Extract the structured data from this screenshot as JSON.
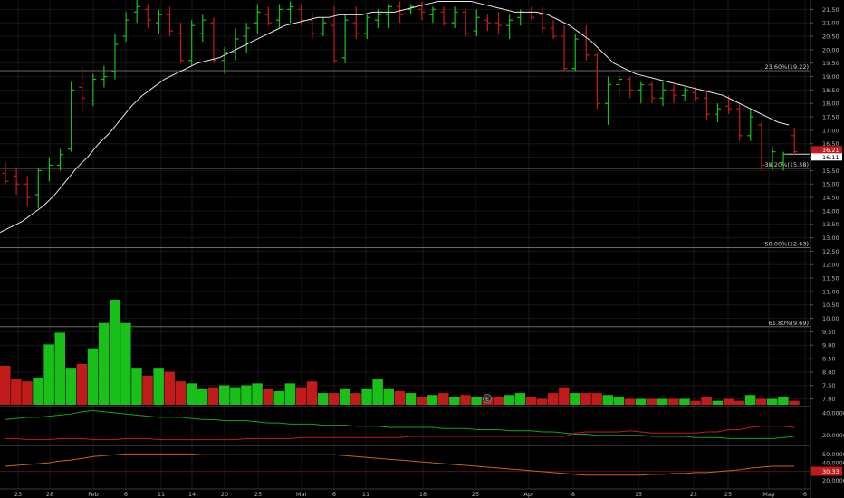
{
  "colors": {
    "background": "#000000",
    "up": "#19c019",
    "down": "#c21b1b",
    "grid": "#171717",
    "axis_text": "#b4b4b4",
    "ma_line": "#e8e8e8",
    "fib_line": "#6a6a6a",
    "price_badge_red": "#c21b1b",
    "price_badge_white": "#ffffff"
  },
  "chart_data": [
    {
      "type": "candlestick",
      "title": "",
      "xlabel": "",
      "ylabel": "",
      "ylim": [
        6.75,
        21.85
      ],
      "y_ticks": [
        7.0,
        7.5,
        8.0,
        8.5,
        9.0,
        9.5,
        10.0,
        10.5,
        11.0,
        11.5,
        12.0,
        12.5,
        13.0,
        13.5,
        14.0,
        14.5,
        15.0,
        15.5,
        16.0,
        16.5,
        17.0,
        17.5,
        18.0,
        18.5,
        19.0,
        19.5,
        20.0,
        20.5,
        21.0,
        21.5
      ],
      "y_tick_labels": [
        "7.00",
        "7.50",
        "8.00",
        "8.50",
        "9.00",
        "9.50",
        "10.00",
        "10.50",
        "11.00",
        "11.50",
        "12.00",
        "12.50",
        "13.00",
        "13.50",
        "14.00",
        "14.50",
        "15.00",
        "15.50",
        "16.00",
        "16.50",
        "17.00",
        "17.50",
        "18.00",
        "18.50",
        "19.00",
        "19.50",
        "20.00",
        "20.50",
        "21.00",
        "21.50"
      ],
      "x_labels": [
        "23",
        "28",
        "Feb",
        "6",
        "11",
        "14",
        "20",
        "25",
        "Mar",
        "6",
        "11",
        "18",
        "25",
        "Apr",
        "8",
        "15",
        "22",
        "25",
        "May",
        "6"
      ],
      "grid": true,
      "candles": [
        {
          "open": 15.4,
          "high": 15.8,
          "low": 15.0,
          "close": 15.1
        },
        {
          "open": 15.3,
          "high": 15.6,
          "low": 14.6,
          "close": 15.0
        },
        {
          "open": 15.0,
          "high": 15.3,
          "low": 14.2,
          "close": 14.5
        },
        {
          "open": 14.6,
          "high": 15.6,
          "low": 14.1,
          "close": 15.5
        },
        {
          "open": 15.6,
          "high": 16.0,
          "low": 15.1,
          "close": 15.7
        },
        {
          "open": 15.7,
          "high": 16.3,
          "low": 15.5,
          "close": 16.1
        },
        {
          "open": 16.3,
          "high": 18.8,
          "low": 16.2,
          "close": 18.5
        },
        {
          "open": 18.6,
          "high": 19.4,
          "low": 17.7,
          "close": 18.2
        },
        {
          "open": 18.1,
          "high": 19.1,
          "low": 17.9,
          "close": 18.9
        },
        {
          "open": 18.9,
          "high": 19.4,
          "low": 18.6,
          "close": 19.0
        },
        {
          "open": 19.2,
          "high": 20.6,
          "low": 18.9,
          "close": 20.2
        },
        {
          "open": 20.5,
          "high": 21.4,
          "low": 20.3,
          "close": 21.1
        },
        {
          "open": 21.4,
          "high": 21.9,
          "low": 21.0,
          "close": 21.6
        },
        {
          "open": 21.5,
          "high": 21.7,
          "low": 20.8,
          "close": 21.1
        },
        {
          "open": 21.0,
          "high": 21.5,
          "low": 20.6,
          "close": 21.3
        },
        {
          "open": 21.3,
          "high": 21.6,
          "low": 20.5,
          "close": 20.7
        },
        {
          "open": 20.6,
          "high": 21.0,
          "low": 19.5,
          "close": 19.6
        },
        {
          "open": 19.6,
          "high": 21.1,
          "low": 19.4,
          "close": 20.9
        },
        {
          "open": 20.6,
          "high": 21.3,
          "low": 20.3,
          "close": 21.1
        },
        {
          "open": 21.0,
          "high": 21.2,
          "low": 19.5,
          "close": 19.6
        },
        {
          "open": 19.6,
          "high": 20.1,
          "low": 19.1,
          "close": 19.9
        },
        {
          "open": 19.9,
          "high": 20.8,
          "low": 19.6,
          "close": 20.4
        },
        {
          "open": 20.5,
          "high": 21.0,
          "low": 19.9,
          "close": 20.8
        },
        {
          "open": 21.0,
          "high": 21.7,
          "low": 20.6,
          "close": 21.4
        },
        {
          "open": 21.3,
          "high": 21.6,
          "low": 20.9,
          "close": 21.0
        },
        {
          "open": 21.1,
          "high": 21.7,
          "low": 20.8,
          "close": 21.5
        },
        {
          "open": 21.5,
          "high": 21.8,
          "low": 21.0,
          "close": 21.6
        },
        {
          "open": 21.5,
          "high": 21.7,
          "low": 20.9,
          "close": 21.1
        },
        {
          "open": 21.1,
          "high": 21.4,
          "low": 20.4,
          "close": 20.6
        },
        {
          "open": 20.6,
          "high": 21.2,
          "low": 20.5,
          "close": 21.0
        },
        {
          "open": 20.9,
          "high": 21.6,
          "low": 19.5,
          "close": 19.6
        },
        {
          "open": 19.7,
          "high": 21.3,
          "low": 19.5,
          "close": 21.1
        },
        {
          "open": 21.0,
          "high": 21.6,
          "low": 20.4,
          "close": 20.6
        },
        {
          "open": 20.6,
          "high": 21.3,
          "low": 20.4,
          "close": 21.2
        },
        {
          "open": 21.1,
          "high": 21.5,
          "low": 20.8,
          "close": 21.3
        },
        {
          "open": 21.3,
          "high": 21.7,
          "low": 20.8,
          "close": 21.6
        },
        {
          "open": 21.6,
          "high": 21.8,
          "low": 21.0,
          "close": 21.3
        },
        {
          "open": 21.5,
          "high": 21.7,
          "low": 21.3,
          "close": 21.6
        },
        {
          "open": 21.5,
          "high": 21.8,
          "low": 21.1,
          "close": 21.4
        },
        {
          "open": 21.3,
          "high": 21.6,
          "low": 21.0,
          "close": 21.5
        },
        {
          "open": 21.4,
          "high": 21.6,
          "low": 20.9,
          "close": 21.0
        },
        {
          "open": 21.0,
          "high": 21.6,
          "low": 20.8,
          "close": 21.4
        },
        {
          "open": 21.4,
          "high": 21.5,
          "low": 20.5,
          "close": 20.6
        },
        {
          "open": 20.7,
          "high": 21.5,
          "low": 20.5,
          "close": 21.2
        },
        {
          "open": 21.1,
          "high": 21.3,
          "low": 20.7,
          "close": 21.0
        },
        {
          "open": 21.0,
          "high": 21.4,
          "low": 20.6,
          "close": 20.9
        },
        {
          "open": 20.9,
          "high": 21.3,
          "low": 20.4,
          "close": 21.1
        },
        {
          "open": 21.2,
          "high": 21.5,
          "low": 20.9,
          "close": 21.4
        },
        {
          "open": 21.4,
          "high": 21.6,
          "low": 21.1,
          "close": 21.2
        },
        {
          "open": 21.3,
          "high": 21.6,
          "low": 20.6,
          "close": 20.8
        },
        {
          "open": 20.8,
          "high": 21.1,
          "low": 20.4,
          "close": 20.5
        },
        {
          "open": 20.5,
          "high": 20.9,
          "low": 19.2,
          "close": 19.3
        },
        {
          "open": 19.3,
          "high": 20.6,
          "low": 19.2,
          "close": 20.4
        },
        {
          "open": 20.6,
          "high": 20.9,
          "low": 19.6,
          "close": 19.8
        },
        {
          "open": 19.8,
          "high": 19.9,
          "low": 17.8,
          "close": 18.0
        },
        {
          "open": 18.0,
          "high": 19.0,
          "low": 17.2,
          "close": 18.7
        },
        {
          "open": 18.7,
          "high": 19.1,
          "low": 18.2,
          "close": 18.9
        },
        {
          "open": 18.9,
          "high": 19.0,
          "low": 18.2,
          "close": 18.5
        },
        {
          "open": 18.5,
          "high": 18.8,
          "low": 18.0,
          "close": 18.7
        },
        {
          "open": 18.7,
          "high": 18.8,
          "low": 18.0,
          "close": 18.2
        },
        {
          "open": 18.2,
          "high": 18.8,
          "low": 17.9,
          "close": 18.5
        },
        {
          "open": 18.5,
          "high": 18.7,
          "low": 18.0,
          "close": 18.3
        },
        {
          "open": 18.3,
          "high": 18.6,
          "low": 18.1,
          "close": 18.5
        },
        {
          "open": 18.4,
          "high": 18.6,
          "low": 18.1,
          "close": 18.2
        },
        {
          "open": 18.2,
          "high": 18.5,
          "low": 17.4,
          "close": 17.6
        },
        {
          "open": 17.6,
          "high": 18.0,
          "low": 17.3,
          "close": 17.8
        },
        {
          "open": 17.9,
          "high": 18.3,
          "low": 17.6,
          "close": 17.8
        },
        {
          "open": 17.8,
          "high": 18.0,
          "low": 16.6,
          "close": 16.8
        },
        {
          "open": 16.8,
          "high": 17.8,
          "low": 16.6,
          "close": 17.5
        },
        {
          "open": 17.2,
          "high": 17.3,
          "low": 15.5,
          "close": 15.7
        },
        {
          "open": 15.7,
          "high": 16.4,
          "low": 15.5,
          "close": 16.2
        },
        {
          "open": 15.8,
          "high": 16.2,
          "low": 15.5,
          "close": 16.1
        },
        {
          "open": 16.8,
          "high": 17.1,
          "low": 16.1,
          "close": 16.2
        }
      ],
      "moving_average": [
        13.2,
        13.4,
        13.6,
        13.9,
        14.2,
        14.6,
        15.1,
        15.6,
        16.0,
        16.5,
        16.9,
        17.4,
        17.9,
        18.3,
        18.6,
        18.9,
        19.1,
        19.3,
        19.5,
        19.6,
        19.7,
        19.9,
        20.1,
        20.3,
        20.5,
        20.7,
        20.9,
        21.0,
        21.1,
        21.2,
        21.2,
        21.3,
        21.3,
        21.3,
        21.4,
        21.4,
        21.4,
        21.5,
        21.6,
        21.7,
        21.8,
        21.8,
        21.8,
        21.8,
        21.7,
        21.6,
        21.5,
        21.4,
        21.4,
        21.4,
        21.3,
        21.1,
        20.9,
        20.6,
        20.3,
        19.9,
        19.5,
        19.3,
        19.1,
        19.0,
        18.9,
        18.8,
        18.7,
        18.6,
        18.5,
        18.4,
        18.3,
        18.1,
        17.9,
        17.7,
        17.5,
        17.3,
        17.2
      ],
      "fib_levels": [
        {
          "label": "23.60%(19.22)",
          "value": 19.22
        },
        {
          "label": "38.20%(15.58)",
          "value": 15.58
        },
        {
          "label": "50.00%(12.63)",
          "value": 12.63
        },
        {
          "label": "61.80%(9.69)",
          "value": 9.69
        }
      ],
      "current_price_line": 16.11,
      "price_badges": [
        "16.21",
        "16.11"
      ],
      "volume": [
        2.0,
        1.3,
        1.2,
        1.4,
        3.1,
        3.7,
        1.9,
        2.1,
        2.9,
        4.2,
        5.4,
        4.2,
        1.9,
        1.5,
        1.9,
        1.7,
        1.2,
        1.1,
        0.8,
        0.9,
        1.0,
        0.9,
        1.0,
        1.1,
        0.8,
        0.7,
        1.1,
        0.9,
        1.2,
        0.6,
        0.6,
        0.8,
        0.6,
        0.8,
        1.3,
        0.8,
        0.7,
        0.6,
        0.4,
        0.5,
        0.6,
        0.4,
        0.5,
        0.4,
        0.4,
        0.4,
        0.5,
        0.6,
        0.4,
        0.3,
        0.6,
        0.9,
        0.6,
        0.6,
        0.6,
        0.5,
        0.4,
        0.3,
        0.3,
        0.3,
        0.3,
        0.3,
        0.3,
        0.2,
        0.4,
        0.2,
        0.3,
        0.2,
        0.5,
        0.3,
        0.3,
        0.4,
        0.2
      ],
      "event_marker": "E"
    },
    {
      "type": "line",
      "title": "",
      "ylim": [
        12.5,
        44.0
      ],
      "y_tick_labels": [
        "40.0000",
        "20.0000"
      ],
      "series": [
        {
          "color": "#19a019",
          "values": [
            34,
            35,
            36,
            36,
            37,
            38,
            39,
            41,
            42,
            41,
            40,
            39,
            38,
            37,
            36,
            36,
            36,
            35,
            34,
            34,
            33,
            33,
            33,
            32,
            31,
            31,
            30,
            30,
            30,
            29,
            29,
            29,
            28,
            28,
            28,
            27,
            27,
            27,
            27,
            27,
            26,
            26,
            26,
            25,
            25,
            25,
            24,
            24,
            24,
            23,
            23,
            22,
            21,
            21,
            20,
            20,
            20,
            20,
            20,
            19,
            19,
            19,
            19,
            18,
            18,
            18,
            17,
            17,
            17,
            17,
            17,
            18,
            19
          ]
        },
        {
          "color": "#c21b1b",
          "values": [
            17,
            17,
            16,
            16,
            16,
            17,
            17,
            17,
            16,
            16,
            16,
            17,
            17,
            17,
            16,
            16,
            16,
            16,
            16,
            16,
            16,
            16,
            17,
            17,
            17,
            17,
            17,
            18,
            18,
            18,
            18,
            18,
            18,
            18,
            18,
            18,
            18,
            19,
            19,
            19,
            19,
            19,
            19,
            19,
            19,
            19,
            19,
            19,
            19,
            19,
            19,
            19,
            22,
            23,
            23,
            23,
            23,
            24,
            23,
            22,
            22,
            22,
            22,
            22,
            23,
            23,
            25,
            25,
            27,
            28,
            28,
            28,
            27
          ]
        }
      ]
    },
    {
      "type": "line",
      "title": "",
      "ylim": [
        12.5,
        57.5
      ],
      "y_tick_labels": [
        "50.0000",
        "40.0000",
        "20.0000"
      ],
      "badge_label": "30.33",
      "series": [
        {
          "color": "#c4631b",
          "values": [
            36,
            37,
            38,
            39,
            40,
            42,
            43,
            45,
            47,
            48,
            49,
            50,
            50,
            50,
            50,
            50,
            50,
            50,
            49,
            49,
            49,
            49,
            49,
            49,
            49,
            49,
            49,
            49,
            49,
            49,
            49,
            48,
            47,
            46,
            45,
            44,
            43,
            42,
            41,
            40,
            39,
            38,
            37,
            36,
            35,
            34,
            33,
            32,
            31,
            30,
            29,
            28,
            27,
            26,
            26,
            26,
            26,
            26,
            26,
            27,
            27,
            28,
            28,
            29,
            29,
            30,
            31,
            32,
            34,
            35,
            36,
            36,
            36
          ]
        }
      ],
      "reference_line": 30.33
    }
  ]
}
